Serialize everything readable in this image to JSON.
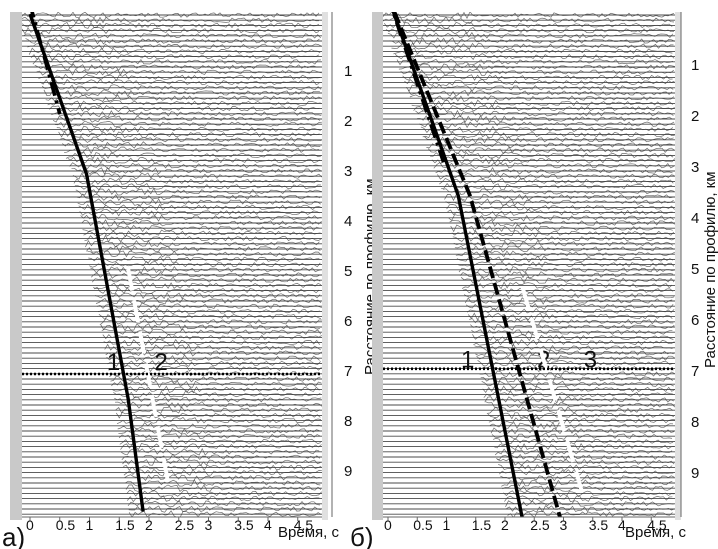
{
  "chart_data": [
    {
      "type": "line",
      "panel_label": "а)",
      "xlabel": "Время, с",
      "ylabel": "Расстояние по профилю, км",
      "xlim": [
        0,
        5.2
      ],
      "ylim": [
        0,
        10.2
      ],
      "x_ticks": [
        "0",
        "0.5",
        "1",
        "1.5",
        "2",
        "2.5",
        "3",
        "3.5",
        "4",
        "4.5"
      ],
      "y_ticks": [
        "1",
        "2",
        "3",
        "4",
        "5",
        "6",
        "7",
        "8",
        "9"
      ],
      "horizontal_marker_km": 7.0,
      "lines": [
        {
          "id": "1",
          "label": "1",
          "style": "solid",
          "points": [
            [
              0.0,
              -0.2
            ],
            [
              0.95,
              3.0
            ],
            [
              1.65,
              7.5
            ],
            [
              1.9,
              9.75
            ]
          ]
        },
        {
          "id": "2",
          "label": "2",
          "style": "dashed",
          "points": [
            [
              1.65,
              4.9
            ],
            [
              2.35,
              9.35
            ]
          ]
        },
        {
          "id": "dashdot",
          "label": "",
          "style": "dashdot",
          "points": [
            [
              0.0,
              -0.4
            ],
            [
              0.5,
              1.8
            ]
          ]
        }
      ]
    },
    {
      "type": "line",
      "panel_label": "б)",
      "xlabel": "Время, с",
      "ylabel": "Расстояние по профилю, км",
      "xlim": [
        0,
        5.2
      ],
      "ylim": [
        0,
        10.2
      ],
      "x_ticks": [
        "0",
        "0.5",
        "1",
        "1.5",
        "2",
        "2.5",
        "3",
        "3.5",
        "4",
        "4.5"
      ],
      "y_ticks": [
        "1",
        "2",
        "3",
        "4",
        "5",
        "6",
        "7",
        "8",
        "9"
      ],
      "horizontal_marker_km": 6.9,
      "lines": [
        {
          "id": "1",
          "label": "1",
          "style": "solid",
          "points": [
            [
              0.0,
              -0.4
            ],
            [
              1.2,
              3.5
            ],
            [
              2.3,
              9.85
            ]
          ]
        },
        {
          "id": "2",
          "label": "2",
          "style": "dashed-thick",
          "points": [
            [
              0.0,
              -0.4
            ],
            [
              1.4,
              3.5
            ],
            [
              2.95,
              9.85
            ]
          ]
        },
        {
          "id": "3",
          "label": "3",
          "style": "dashed",
          "points": [
            [
              2.3,
              5.3
            ],
            [
              3.35,
              9.45
            ]
          ]
        },
        {
          "id": "dashdot",
          "label": "",
          "style": "dashdot",
          "points": [
            [
              0.0,
              -0.4
            ],
            [
              0.95,
              2.85
            ]
          ]
        }
      ]
    }
  ]
}
